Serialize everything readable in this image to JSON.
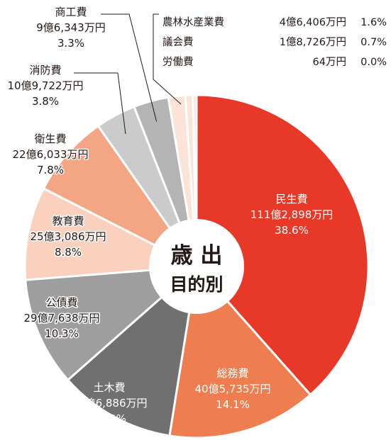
{
  "chart_data": {
    "type": "pie",
    "title": "歳 出",
    "subtitle": "目的別",
    "slices": [
      {
        "name": "民生費",
        "amount": "111億2,898万円",
        "percent_label": "38.6%",
        "value": 38.6,
        "color": "#E83828"
      },
      {
        "name": "総務費",
        "amount": "40億5,735万円",
        "percent_label": "14.1%",
        "value": 14.1,
        "color": "#EE7D50"
      },
      {
        "name": "土木費",
        "amount": "31億6,886万円",
        "percent_label": "11.0%",
        "value": 11.0,
        "color": "#707070"
      },
      {
        "name": "公債費",
        "amount": "29億7,638万円",
        "percent_label": "10.3%",
        "value": 10.3,
        "color": "#9E9E9E"
      },
      {
        "name": "教育費",
        "amount": "25億3,086万円",
        "percent_label": "8.8%",
        "value": 8.8,
        "color": "#FAD0BE"
      },
      {
        "name": "衛生費",
        "amount": "22億6,033万円",
        "percent_label": "7.8%",
        "value": 7.8,
        "color": "#F4A583"
      },
      {
        "name": "消防費",
        "amount": "10億9,722万円",
        "percent_label": "3.8%",
        "value": 3.8,
        "color": "#CBCBCB"
      },
      {
        "name": "商工費",
        "amount": "9億6,343万円",
        "percent_label": "3.3%",
        "value": 3.3,
        "color": "#B4B4B4"
      },
      {
        "name": "農林水産業費",
        "amount": "4億6,406万円",
        "percent_label": "1.6%",
        "value": 1.6,
        "color": "#FCE3D8"
      },
      {
        "name": "議会費",
        "amount": "1億8,726万円",
        "percent_label": "0.7%",
        "value": 0.7,
        "color": "#FCE3D8"
      },
      {
        "name": "労働費",
        "amount": "64万円",
        "percent_label": "0.0%",
        "value": 0.0,
        "color": "#FCE3D8"
      }
    ]
  }
}
